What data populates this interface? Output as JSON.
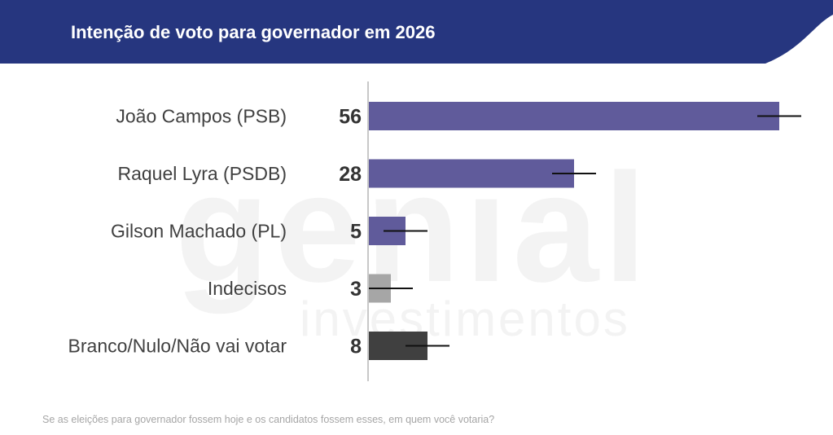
{
  "header": {
    "title": "Intenção de voto para governador em 2026",
    "background_color": "#26367f"
  },
  "watermark": {
    "line1": "genial",
    "line2": "investimentos",
    "color": "#f3f3f3"
  },
  "question": "Se as eleições para governador fossem hoje e os candidatos fossem esses, em quem você votaria?",
  "chart_data": {
    "type": "bar",
    "orientation": "horizontal",
    "title": "Intenção de voto para governador em 2026",
    "xlim": [
      0,
      60
    ],
    "grid": false,
    "error_bars": true,
    "categories": [
      "João Campos (PSB)",
      "Raquel Lyra (PSDB)",
      "Gilson Machado (PL)",
      "Indecisos",
      "Branco/Nulo/Não vai votar"
    ],
    "values": [
      56,
      28,
      5,
      3,
      8
    ],
    "value_labels": [
      "56",
      "28",
      "5",
      "3",
      "8"
    ],
    "error_margin": 3,
    "colors": [
      "#605b9b",
      "#605b9b",
      "#605b9b",
      "#a6a6a6",
      "#404040"
    ]
  }
}
